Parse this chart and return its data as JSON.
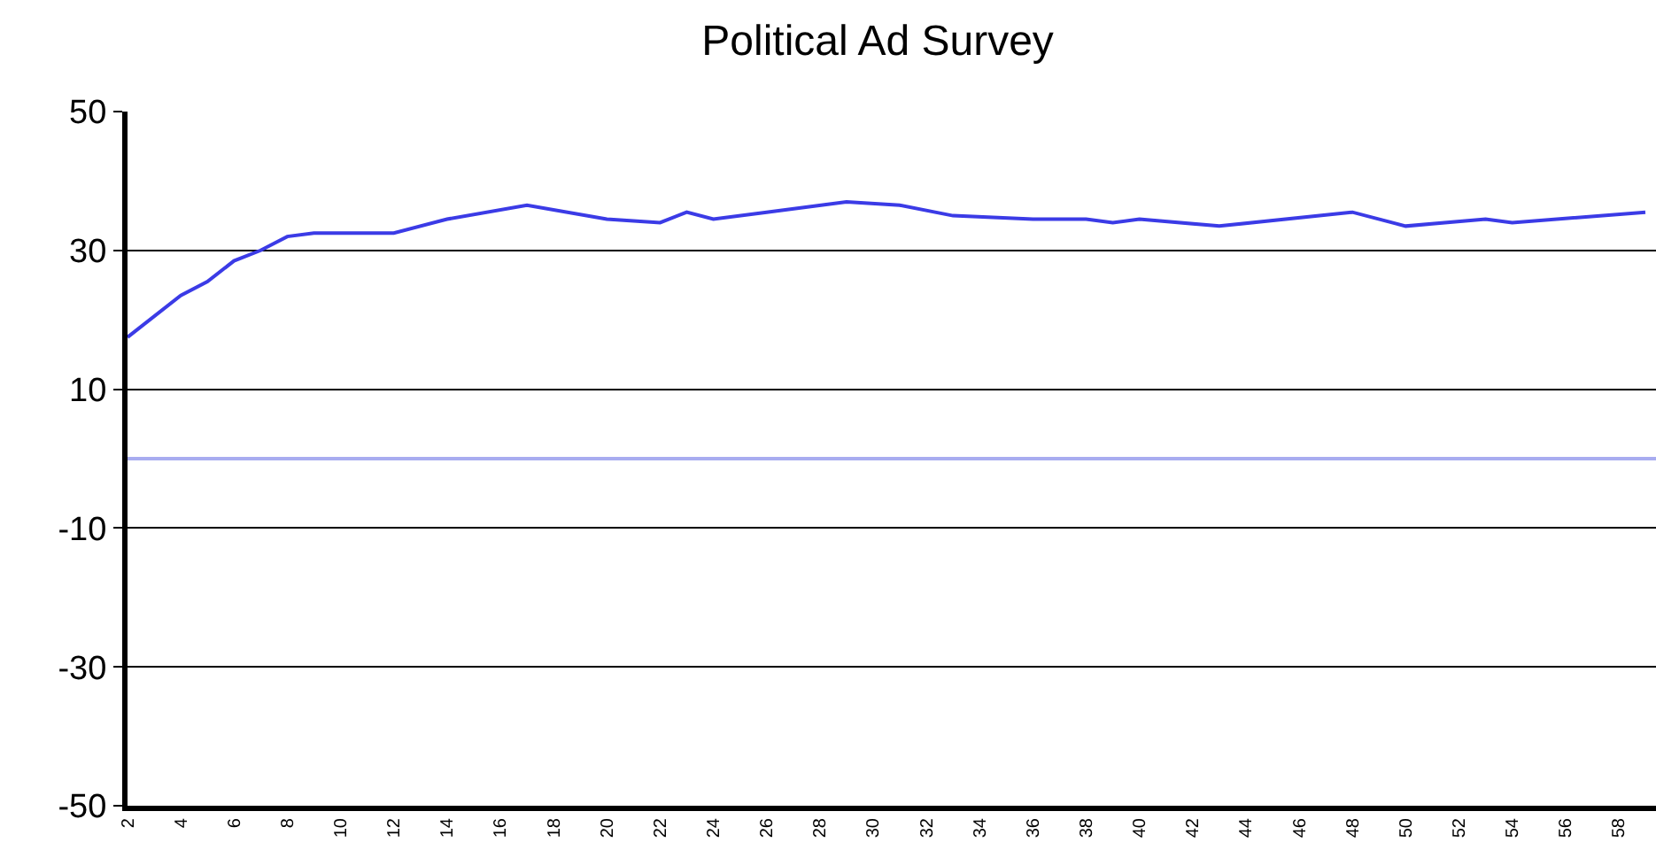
{
  "chart_data": {
    "type": "line",
    "title": "Political Ad Survey",
    "x": [
      2,
      4,
      5,
      6,
      7,
      8,
      9,
      12,
      14,
      17,
      20,
      22,
      23,
      24,
      26,
      29,
      31,
      33,
      36,
      38,
      39,
      40,
      43,
      48,
      50,
      53,
      54,
      59
    ],
    "series": [
      {
        "color": "#3b3be6",
        "values": [
          17.5,
          23.5,
          25.5,
          28.5,
          30,
          32,
          32.5,
          32.5,
          34.5,
          36.5,
          34.5,
          34,
          35.5,
          34.5,
          35.5,
          37,
          36.5,
          35,
          34.5,
          34.5,
          34,
          34.5,
          33.5,
          35.5,
          33.5,
          34.5,
          34,
          35.5
        ]
      }
    ],
    "xlim": [
      2,
      59.4
    ],
    "xticks": [
      2,
      4,
      6,
      8,
      10,
      12,
      14,
      16,
      18,
      20,
      22,
      24,
      26,
      28,
      30,
      32,
      34,
      36,
      38,
      40,
      42,
      44,
      46,
      48,
      50,
      52,
      54,
      56,
      58
    ],
    "ylim": [
      -50,
      50
    ],
    "yticks": [
      -50,
      -30,
      -10,
      10,
      30,
      50
    ],
    "ref_lines": [
      {
        "axis": "y",
        "value": 0,
        "color": "#a8acf0"
      }
    ],
    "grid": "y",
    "marker": "none",
    "line_style": "solid"
  }
}
